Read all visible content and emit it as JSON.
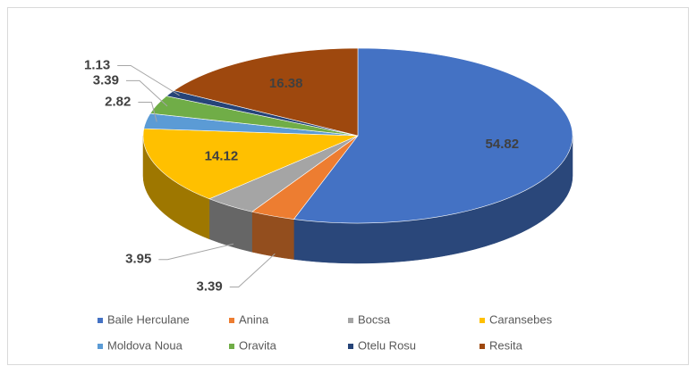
{
  "chart_data": {
    "type": "pie3d",
    "categories": [
      "Baile Herculane",
      "Anina",
      "Bocsa",
      "Caransebes",
      "Moldova Noua",
      "Oravita",
      "Otelu Rosu",
      "Resita"
    ],
    "values": [
      54.82,
      3.39,
      3.95,
      14.12,
      2.82,
      3.39,
      1.13,
      16.38
    ],
    "colors": [
      "#4472c4",
      "#ed7d31",
      "#a5a5a5",
      "#ffc000",
      "#5b9bd5",
      "#70ad47",
      "#264478",
      "#9e480e"
    ],
    "legend": "bottom"
  }
}
